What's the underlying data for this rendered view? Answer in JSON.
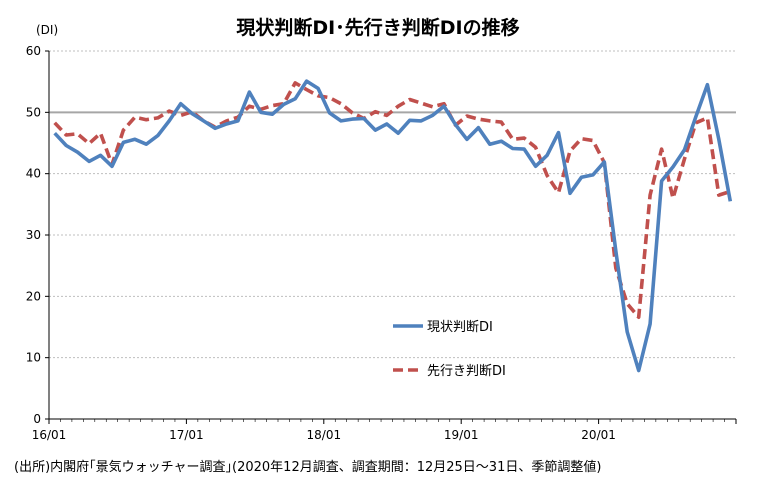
{
  "chart_data": {
    "type": "line",
    "title": "現状判断DI･先行き判断DIの推移",
    "y_unit": "(DI)",
    "ylim": [
      0,
      60
    ],
    "y_ticks": [
      0,
      10,
      20,
      30,
      40,
      50,
      60
    ],
    "x_ticks": [
      "16/01",
      "17/01",
      "18/01",
      "19/01",
      "20/01"
    ],
    "reference_line": {
      "value": 50,
      "color": "#a6a6a6"
    },
    "grid": true,
    "legend_position": "bottom-center",
    "x": [
      "2016-01",
      "2016-02",
      "2016-03",
      "2016-04",
      "2016-05",
      "2016-06",
      "2016-07",
      "2016-08",
      "2016-09",
      "2016-10",
      "2016-11",
      "2016-12",
      "2017-01",
      "2017-02",
      "2017-03",
      "2017-04",
      "2017-05",
      "2017-06",
      "2017-07",
      "2017-08",
      "2017-09",
      "2017-10",
      "2017-11",
      "2017-12",
      "2018-01",
      "2018-02",
      "2018-03",
      "2018-04",
      "2018-05",
      "2018-06",
      "2018-07",
      "2018-08",
      "2018-09",
      "2018-10",
      "2018-11",
      "2018-12",
      "2019-01",
      "2019-02",
      "2019-03",
      "2019-04",
      "2019-05",
      "2019-06",
      "2019-07",
      "2019-08",
      "2019-09",
      "2019-10",
      "2019-11",
      "2019-12",
      "2020-01",
      "2020-02",
      "2020-03",
      "2020-04",
      "2020-05",
      "2020-06",
      "2020-07",
      "2020-08",
      "2020-09",
      "2020-10",
      "2020-11",
      "2020-12"
    ],
    "series": [
      {
        "name": "現状判断DI",
        "color": "#4f81bd",
        "style": "solid",
        "values": [
          46.6,
          44.6,
          43.5,
          42.0,
          43.0,
          41.2,
          45.1,
          45.6,
          44.8,
          46.2,
          48.6,
          51.4,
          49.8,
          48.6,
          47.4,
          48.1,
          48.6,
          53.3,
          50.0,
          49.7,
          51.3,
          52.2,
          55.1,
          53.9,
          49.9,
          48.6,
          48.9,
          49.0,
          47.1,
          48.1,
          46.6,
          48.7,
          48.6,
          49.5,
          51.0,
          48.0,
          45.6,
          47.5,
          44.8,
          45.3,
          44.1,
          44.0,
          41.2,
          43.0,
          46.7,
          36.8,
          39.4,
          39.8,
          41.9,
          27.4,
          14.2,
          7.9,
          15.5,
          38.8,
          41.1,
          43.9,
          49.3,
          54.5,
          45.6,
          35.5
        ]
      },
      {
        "name": "先行き判断DI",
        "color": "#c0504d",
        "style": "dashed",
        "values": [
          48.3,
          46.3,
          46.5,
          44.9,
          46.6,
          41.5,
          47.1,
          49.2,
          48.8,
          49.1,
          50.2,
          49.5,
          50.1,
          48.6,
          47.6,
          48.6,
          49.2,
          51.0,
          50.5,
          51.1,
          51.4,
          54.8,
          53.7,
          52.7,
          52.4,
          51.4,
          49.9,
          49.0,
          50.1,
          49.5,
          51.0,
          52.1,
          51.5,
          50.9,
          51.4,
          47.9,
          49.4,
          48.9,
          48.6,
          48.4,
          45.6,
          45.8,
          44.3,
          39.7,
          36.9,
          43.7,
          45.7,
          45.4,
          41.8,
          24.6,
          18.8,
          16.6,
          36.5,
          44.0,
          36.0,
          42.4,
          48.3,
          49.1,
          36.5,
          37.1
        ]
      }
    ]
  },
  "source_note": "(出所)内閣府｢景気ウォッチャー調査｣(2020年12月調査、調査期間：12月25日～31日、季節調整値)"
}
